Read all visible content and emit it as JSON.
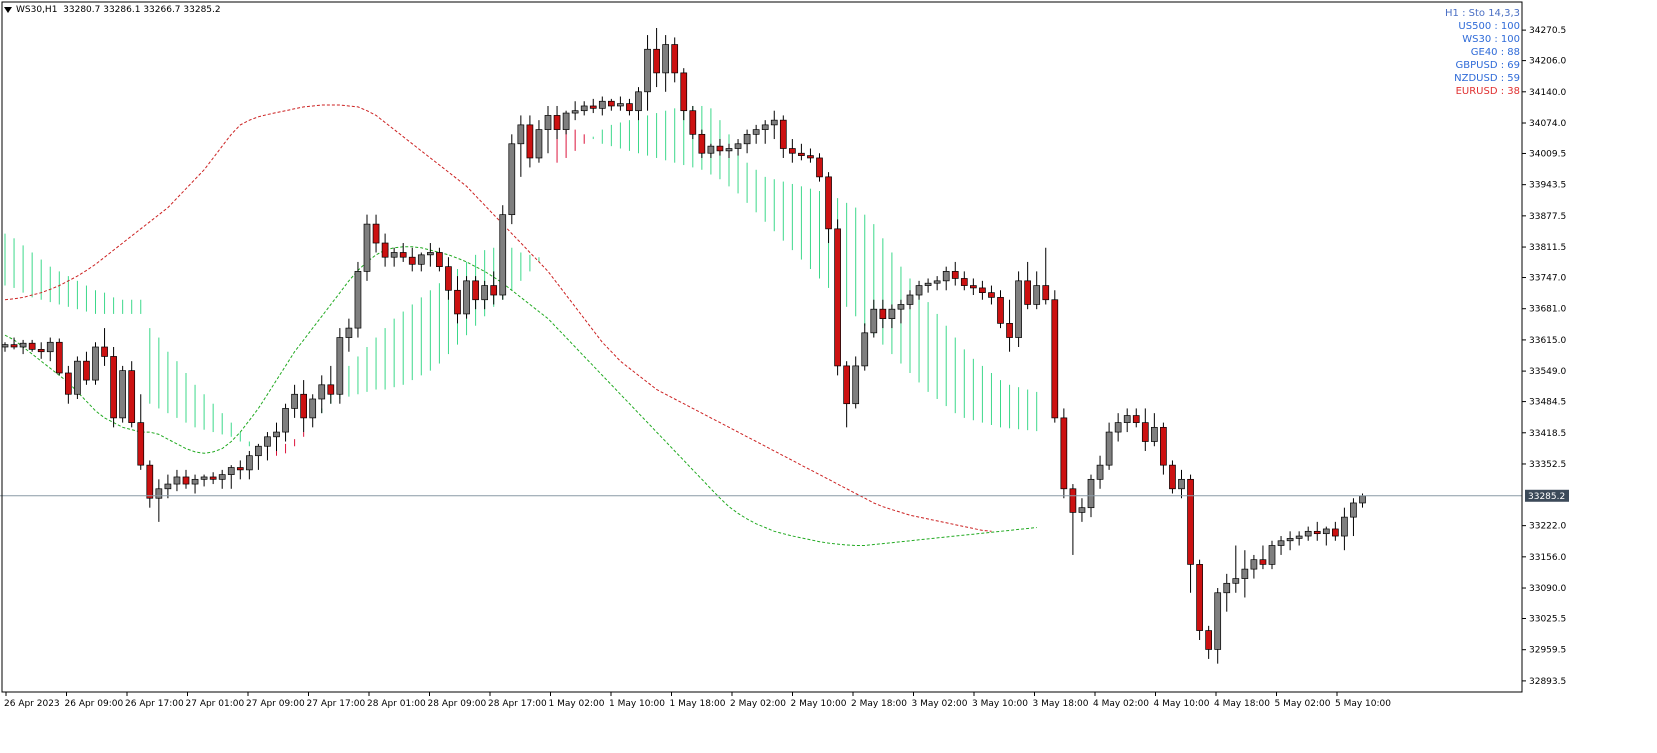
{
  "header": {
    "symbol": "WS30,H1",
    "ohlc": "33280.7 33286.1 33266.7 33285.2"
  },
  "sto_panel": {
    "title": "H1 : Sto 14,3,3",
    "title_color": "#4a6fc4",
    "entries": [
      {
        "label": "US500 : 100",
        "color": "#2f6bd8"
      },
      {
        "label": "WS30 : 100",
        "color": "#2f6bd8"
      },
      {
        "label": "GE40 : 88",
        "color": "#2f6bd8"
      },
      {
        "label": "GBPUSD : 69",
        "color": "#2f6bd8"
      },
      {
        "label": "NZDUSD : 59",
        "color": "#2f6bd8"
      },
      {
        "label": "EURUSD : 38",
        "color": "#e03030"
      }
    ]
  },
  "chart_data": {
    "type": "candlestick",
    "y_ticks": [
      "34270.5",
      "34206.0",
      "34140.0",
      "34074.0",
      "34009.5",
      "33943.5",
      "33877.5",
      "33811.5",
      "33747.0",
      "33681.0",
      "33615.0",
      "33549.0",
      "33484.5",
      "33418.5",
      "33352.5",
      "33222.0",
      "33156.0",
      "33090.0",
      "33025.5",
      "32959.5",
      "32893.5"
    ],
    "ylim": [
      32870,
      34330
    ],
    "x_ticks": [
      "26 Apr 2023",
      "26 Apr 09:00",
      "26 Apr 17:00",
      "27 Apr 01:00",
      "27 Apr 09:00",
      "27 Apr 17:00",
      "28 Apr 01:00",
      "28 Apr 09:00",
      "28 Apr 17:00",
      "1 May 02:00",
      "1 May 10:00",
      "1 May 18:00",
      "2 May 02:00",
      "2 May 10:00",
      "2 May 18:00",
      "3 May 02:00",
      "3 May 10:00",
      "3 May 18:00",
      "4 May 02:00",
      "4 May 10:00",
      "4 May 18:00",
      "5 May 02:00",
      "5 May 10:00"
    ],
    "current_price": "33285.2",
    "candle_up_color": "#7f7f7f",
    "candle_down_color": "#cc1111",
    "cloud_bear_color": "#dc143c",
    "cloud_bull_color": "#3cd88a",
    "kumo_span_a": [
      33840,
      33830,
      33815,
      33800,
      33785,
      33770,
      33760,
      33750,
      33740,
      33730,
      33720,
      33715,
      33705,
      33700,
      33700,
      33700,
      33640,
      33620,
      33590,
      33570,
      33545,
      33520,
      33500,
      33480,
      33460,
      33440,
      33420,
      33400,
      33385,
      33375,
      33370,
      33375,
      33390,
      33410,
      33440,
      33470,
      33500,
      33530,
      33560,
      33580,
      33600,
      33620,
      33640,
      33660,
      33675,
      33690,
      33705,
      33720,
      33735,
      33750,
      33765,
      33780,
      33795,
      33805,
      33810,
      33815,
      33810,
      33800,
      33795,
      33790,
      33790,
      33990,
      34000,
      34015,
      34030,
      34045,
      34060,
      34070,
      34075,
      34080,
      34085,
      34090,
      34095,
      34100,
      34105,
      34110,
      34110,
      34110,
      34105,
      34080,
      34050,
      34010,
      33990,
      33975,
      33960,
      33955,
      33950,
      33945,
      33940,
      33935,
      33930,
      33920,
      33915,
      33905,
      33895,
      33880,
      33860,
      33830,
      33800,
      33770,
      33745,
      33720,
      33695,
      33670,
      33645,
      33620,
      33595,
      33575,
      33560,
      33545,
      33530,
      33520,
      33515,
      33510,
      33505
    ],
    "kumo_span_b": [
      33730,
      33725,
      33715,
      33705,
      33700,
      33695,
      33690,
      33685,
      33680,
      33675,
      33670,
      33670,
      33670,
      33670,
      33670,
      33670,
      33480,
      33470,
      33460,
      33450,
      33440,
      33430,
      33425,
      33420,
      33415,
      33410,
      33400,
      33390,
      33385,
      33385,
      33390,
      33395,
      33405,
      33420,
      33440,
      33460,
      33480,
      33490,
      33495,
      33500,
      33505,
      33510,
      33510,
      33515,
      33520,
      33530,
      33540,
      33550,
      33565,
      33585,
      33605,
      33625,
      33645,
      33665,
      33685,
      33700,
      33720,
      33740,
      33760,
      33780,
      33790,
      34075,
      34070,
      34060,
      34050,
      34040,
      34030,
      34025,
      34020,
      34015,
      34010,
      34005,
      34000,
      33995,
      33990,
      33985,
      33980,
      33975,
      33965,
      33955,
      33940,
      33925,
      33905,
      33885,
      33865,
      33845,
      33825,
      33805,
      33785,
      33765,
      33745,
      33725,
      33705,
      33685,
      33665,
      33645,
      33625,
      33605,
      33585,
      33565,
      33545,
      33525,
      33505,
      33490,
      33475,
      33460,
      33450,
      33445,
      33440,
      33435,
      33430,
      33428,
      33426,
      33424,
      33422
    ],
    "tenkan": [
      33700,
      33702,
      33705,
      33710,
      33715,
      33722,
      33730,
      33740,
      33750,
      33762,
      33775,
      33790,
      33805,
      33820,
      33835,
      33850,
      33865,
      33880,
      33895,
      33915,
      33935,
      33955,
      33975,
      34000,
      34025,
      34050,
      34070,
      34080,
      34087,
      34092,
      34096,
      34100,
      34104,
      34108,
      34110,
      34112,
      34112,
      34112,
      34110,
      34108,
      34100,
      34090,
      34075,
      34060,
      34045,
      34030,
      34015,
      34000,
      33985,
      33970,
      33955,
      33940,
      33920,
      33900,
      33880,
      33860,
      33840,
      33820,
      33800,
      33780,
      33760,
      33735,
      33710,
      33685,
      33660,
      33635,
      33610,
      33590,
      33570,
      33555,
      33540,
      33525,
      33510,
      33500,
      33490,
      33480,
      33470,
      33460,
      33450,
      33440,
      33430,
      33420,
      33410,
      33400,
      33390,
      33380,
      33370,
      33360,
      33350,
      33340,
      33330,
      33320,
      33310,
      33300,
      33290,
      33280,
      33270,
      33262,
      33256,
      33250,
      33244,
      33240,
      33236,
      33232,
      33228,
      33224,
      33220,
      33216,
      33212,
      33210
    ],
    "kijun": [
      33625,
      33615,
      33600,
      33585,
      33570,
      33555,
      33540,
      33525,
      33505,
      33485,
      33465,
      33450,
      33440,
      33430,
      33425,
      33420,
      33420,
      33415,
      33405,
      33395,
      33385,
      33378,
      33375,
      33378,
      33385,
      33400,
      33420,
      33445,
      33470,
      33500,
      33530,
      33560,
      33590,
      33615,
      33640,
      33665,
      33690,
      33715,
      33740,
      33762,
      33780,
      33795,
      33805,
      33810,
      33812,
      33812,
      33810,
      33805,
      33800,
      33795,
      33788,
      33780,
      33770,
      33760,
      33748,
      33735,
      33720,
      33705,
      33690,
      33675,
      33660,
      33640,
      33620,
      33600,
      33580,
      33560,
      33540,
      33520,
      33500,
      33480,
      33460,
      33440,
      33420,
      33400,
      33380,
      33360,
      33340,
      33320,
      33300,
      33280,
      33262,
      33248,
      33236,
      33226,
      33218,
      33210,
      33205,
      33200,
      33196,
      33192,
      33188,
      33185,
      33183,
      33181,
      33180,
      33180,
      33182,
      33184,
      33186,
      33188,
      33190,
      33192,
      33194,
      33196,
      33198,
      33200,
      33202,
      33204,
      33206,
      33208,
      33210,
      33212,
      33214,
      33216,
      33218
    ],
    "candles": [
      [
        33600,
        33610,
        33590,
        33605
      ],
      [
        33605,
        33620,
        33595,
        33600
      ],
      [
        33600,
        33615,
        33585,
        33608
      ],
      [
        33608,
        33615,
        33590,
        33595
      ],
      [
        33595,
        33610,
        33575,
        33590
      ],
      [
        33590,
        33620,
        33570,
        33610
      ],
      [
        33610,
        33618,
        33540,
        33545
      ],
      [
        33545,
        33560,
        33480,
        33500
      ],
      [
        33500,
        33580,
        33490,
        33570
      ],
      [
        33570,
        33590,
        33520,
        33530
      ],
      [
        33530,
        33610,
        33520,
        33600
      ],
      [
        33600,
        33640,
        33560,
        33580
      ],
      [
        33580,
        33600,
        33430,
        33450
      ],
      [
        33450,
        33560,
        33440,
        33550
      ],
      [
        33550,
        33570,
        33430,
        33440
      ],
      [
        33440,
        33500,
        33340,
        33350
      ],
      [
        33350,
        33360,
        33260,
        33280
      ],
      [
        33280,
        33320,
        33230,
        33300
      ],
      [
        33300,
        33330,
        33280,
        33310
      ],
      [
        33310,
        33340,
        33295,
        33325
      ],
      [
        33325,
        33340,
        33300,
        33310
      ],
      [
        33310,
        33330,
        33290,
        33320
      ],
      [
        33320,
        33330,
        33305,
        33325
      ],
      [
        33325,
        33335,
        33310,
        33320
      ],
      [
        33320,
        33340,
        33300,
        33330
      ],
      [
        33330,
        33350,
        33300,
        33345
      ],
      [
        33345,
        33360,
        33320,
        33340
      ],
      [
        33340,
        33380,
        33320,
        33370
      ],
      [
        33370,
        33395,
        33340,
        33390
      ],
      [
        33390,
        33420,
        33360,
        33410
      ],
      [
        33410,
        33440,
        33380,
        33420
      ],
      [
        33420,
        33480,
        33400,
        33470
      ],
      [
        33470,
        33520,
        33450,
        33500
      ],
      [
        33500,
        33530,
        33420,
        33450
      ],
      [
        33450,
        33500,
        33430,
        33490
      ],
      [
        33490,
        33540,
        33460,
        33520
      ],
      [
        33520,
        33560,
        33480,
        33500
      ],
      [
        33500,
        33640,
        33480,
        33620
      ],
      [
        33620,
        33660,
        33590,
        33640
      ],
      [
        33640,
        33780,
        33620,
        33760
      ],
      [
        33760,
        33880,
        33740,
        33860
      ],
      [
        33860,
        33880,
        33800,
        33820
      ],
      [
        33820,
        33840,
        33770,
        33790
      ],
      [
        33790,
        33810,
        33770,
        33800
      ],
      [
        33800,
        33820,
        33780,
        33790
      ],
      [
        33790,
        33810,
        33760,
        33775
      ],
      [
        33775,
        33800,
        33760,
        33795
      ],
      [
        33795,
        33820,
        33770,
        33800
      ],
      [
        33800,
        33810,
        33760,
        33770
      ],
      [
        33770,
        33790,
        33700,
        33720
      ],
      [
        33720,
        33750,
        33650,
        33670
      ],
      [
        33670,
        33750,
        33660,
        33740
      ],
      [
        33740,
        33750,
        33680,
        33700
      ],
      [
        33700,
        33740,
        33680,
        33730
      ],
      [
        33730,
        33760,
        33690,
        33710
      ],
      [
        33710,
        33900,
        33700,
        33880
      ],
      [
        33880,
        34050,
        33860,
        34030
      ],
      [
        34030,
        34090,
        33960,
        34070
      ],
      [
        34070,
        34090,
        33980,
        34000
      ],
      [
        34000,
        34080,
        33990,
        34060
      ],
      [
        34060,
        34110,
        34010,
        34090
      ],
      [
        34090,
        34110,
        34040,
        34060
      ],
      [
        34060,
        34100,
        34050,
        34095
      ],
      [
        34095,
        34120,
        34080,
        34100
      ],
      [
        34100,
        34120,
        34090,
        34110
      ],
      [
        34110,
        34125,
        34095,
        34105
      ],
      [
        34105,
        34130,
        34090,
        34120
      ],
      [
        34120,
        34125,
        34100,
        34110
      ],
      [
        34110,
        34130,
        34100,
        34115
      ],
      [
        34115,
        34125,
        34090,
        34100
      ],
      [
        34100,
        34150,
        34080,
        34140
      ],
      [
        34140,
        34260,
        34100,
        34230
      ],
      [
        34230,
        34275,
        34150,
        34180
      ],
      [
        34180,
        34260,
        34140,
        34240
      ],
      [
        34240,
        34255,
        34160,
        34180
      ],
      [
        34180,
        34190,
        34080,
        34100
      ],
      [
        34100,
        34110,
        34040,
        34050
      ],
      [
        34050,
        34060,
        34000,
        34010
      ],
      [
        34010,
        34030,
        34000,
        34025
      ],
      [
        34025,
        34040,
        34005,
        34015
      ],
      [
        34015,
        34030,
        34000,
        34020
      ],
      [
        34020,
        34040,
        34005,
        34030
      ],
      [
        34030,
        34060,
        34010,
        34050
      ],
      [
        34050,
        34070,
        34030,
        34060
      ],
      [
        34060,
        34080,
        34030,
        34070
      ],
      [
        34070,
        34100,
        34040,
        34080
      ],
      [
        34080,
        34090,
        34000,
        34020
      ],
      [
        34020,
        34040,
        33990,
        34010
      ],
      [
        34010,
        34030,
        33995,
        34005
      ],
      [
        34005,
        34020,
        33990,
        34000
      ],
      [
        34000,
        34010,
        33950,
        33960
      ],
      [
        33960,
        33970,
        33820,
        33850
      ],
      [
        33850,
        33870,
        33540,
        33560
      ],
      [
        33560,
        33570,
        33430,
        33480
      ],
      [
        33480,
        33580,
        33470,
        33560
      ],
      [
        33560,
        33650,
        33550,
        33630
      ],
      [
        33630,
        33700,
        33620,
        33680
      ],
      [
        33680,
        33700,
        33640,
        33660
      ],
      [
        33660,
        33690,
        33640,
        33680
      ],
      [
        33680,
        33700,
        33650,
        33690
      ],
      [
        33690,
        33720,
        33680,
        33710
      ],
      [
        33710,
        33740,
        33700,
        33730
      ],
      [
        33730,
        33745,
        33715,
        33735
      ],
      [
        33735,
        33750,
        33720,
        33740
      ],
      [
        33740,
        33770,
        33720,
        33760
      ],
      [
        33760,
        33780,
        33730,
        33745
      ],
      [
        33745,
        33760,
        33720,
        33730
      ],
      [
        33730,
        33745,
        33710,
        33725
      ],
      [
        33725,
        33740,
        33700,
        33715
      ],
      [
        33715,
        33730,
        33690,
        33705
      ],
      [
        33705,
        33720,
        33640,
        33650
      ],
      [
        33650,
        33700,
        33590,
        33620
      ],
      [
        33620,
        33760,
        33600,
        33740
      ],
      [
        33740,
        33780,
        33680,
        33690
      ],
      [
        33690,
        33760,
        33680,
        33730
      ],
      [
        33730,
        33810,
        33690,
        33700
      ],
      [
        33700,
        33720,
        33440,
        33450
      ],
      [
        33450,
        33470,
        33280,
        33300
      ],
      [
        33300,
        33310,
        33160,
        33250
      ],
      [
        33250,
        33280,
        33230,
        33260
      ],
      [
        33260,
        33330,
        33240,
        33320
      ],
      [
        33320,
        33370,
        33300,
        33350
      ],
      [
        33350,
        33440,
        33340,
        33420
      ],
      [
        33420,
        33460,
        33400,
        33440
      ],
      [
        33440,
        33470,
        33420,
        33455
      ],
      [
        33455,
        33470,
        33430,
        33440
      ],
      [
        33440,
        33470,
        33380,
        33400
      ],
      [
        33400,
        33460,
        33390,
        33430
      ],
      [
        33430,
        33440,
        33330,
        33350
      ],
      [
        33350,
        33360,
        33290,
        33300
      ],
      [
        33300,
        33340,
        33280,
        33320
      ],
      [
        33320,
        33330,
        33080,
        33140
      ],
      [
        33140,
        33150,
        32980,
        33000
      ],
      [
        33000,
        33010,
        32940,
        32960
      ],
      [
        32960,
        33090,
        32930,
        33080
      ],
      [
        33080,
        33120,
        33040,
        33100
      ],
      [
        33100,
        33180,
        33080,
        33110
      ],
      [
        33110,
        33170,
        33070,
        33130
      ],
      [
        33130,
        33160,
        33110,
        33150
      ],
      [
        33150,
        33180,
        33130,
        33140
      ],
      [
        33140,
        33190,
        33130,
        33180
      ],
      [
        33180,
        33200,
        33160,
        33190
      ],
      [
        33190,
        33210,
        33170,
        33195
      ],
      [
        33195,
        33210,
        33180,
        33200
      ],
      [
        33200,
        33220,
        33190,
        33210
      ],
      [
        33210,
        33230,
        33190,
        33205
      ],
      [
        33205,
        33220,
        33180,
        33215
      ],
      [
        33215,
        33230,
        33190,
        33200
      ],
      [
        33200,
        33260,
        33170,
        33240
      ],
      [
        33240,
        33280,
        33200,
        33270
      ],
      [
        33270,
        33290,
        33260,
        33285
      ]
    ]
  }
}
